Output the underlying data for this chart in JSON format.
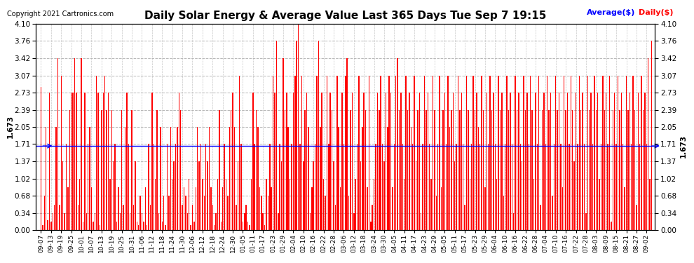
{
  "title": "Daily Solar Energy & Average Value Last 365 Days Tue Sep 7 19:15",
  "copyright": "Copyright 2021 Cartronics.com",
  "average_label": "Average($)",
  "daily_label": "Daily($)",
  "average_value": 1.673,
  "ylim": [
    0.0,
    4.1
  ],
  "yticks": [
    0.0,
    0.34,
    0.68,
    1.02,
    1.37,
    1.71,
    2.05,
    2.39,
    2.73,
    3.07,
    3.42,
    3.76,
    4.1
  ],
  "bar_color": "#ff0000",
  "average_line_color": "#0000ff",
  "background_color": "#ffffff",
  "grid_color": "#b0b0b0",
  "title_color": "#000000",
  "copyright_color": "#000000",
  "x_labels": [
    "09-07",
    "09-13",
    "09-19",
    "09-25",
    "10-01",
    "10-07",
    "10-13",
    "10-19",
    "10-25",
    "10-31",
    "11-06",
    "11-12",
    "11-18",
    "11-24",
    "11-30",
    "12-06",
    "12-12",
    "12-18",
    "12-24",
    "12-30",
    "01-05",
    "01-11",
    "01-17",
    "01-23",
    "01-29",
    "02-04",
    "02-10",
    "02-16",
    "02-22",
    "02-28",
    "03-06",
    "03-12",
    "03-18",
    "03-24",
    "03-30",
    "04-05",
    "04-11",
    "04-17",
    "04-23",
    "04-29",
    "05-05",
    "05-11",
    "05-17",
    "05-23",
    "05-29",
    "06-04",
    "06-10",
    "06-16",
    "06-22",
    "06-28",
    "07-04",
    "07-10",
    "07-16",
    "07-22",
    "07-28",
    "08-03",
    "08-09",
    "08-15",
    "08-21",
    "08-27",
    "09-02"
  ],
  "daily_values": [
    2.85,
    0.1,
    0.68,
    2.05,
    0.2,
    2.73,
    0.17,
    0.34,
    0.51,
    2.05,
    3.42,
    0.51,
    3.07,
    1.37,
    0.34,
    1.71,
    0.85,
    2.39,
    2.73,
    2.73,
    3.42,
    2.73,
    0.51,
    1.02,
    3.42,
    0.17,
    2.73,
    0.34,
    1.71,
    2.05,
    0.85,
    0.17,
    0.34,
    3.07,
    2.73,
    0.1,
    2.39,
    2.73,
    3.07,
    2.39,
    2.73,
    1.02,
    2.39,
    1.37,
    1.71,
    0.17,
    0.85,
    0.34,
    2.39,
    0.51,
    2.05,
    2.73,
    1.71,
    0.34,
    2.39,
    0.51,
    1.37,
    0.17,
    0.1,
    0.68,
    0.34,
    0.17,
    0.85,
    0.1,
    1.71,
    0.51,
    2.73,
    1.71,
    1.02,
    2.39,
    0.34,
    2.05,
    0.17,
    0.68,
    0.1,
    1.71,
    0.68,
    2.05,
    1.02,
    1.37,
    1.71,
    2.05,
    2.73,
    2.39,
    0.51,
    0.85,
    0.68,
    0.34,
    1.02,
    0.1,
    0.51,
    0.17,
    0.85,
    2.05,
    1.37,
    1.71,
    1.02,
    0.68,
    1.71,
    1.37,
    2.05,
    0.85,
    0.51,
    0.1,
    0.34,
    1.02,
    2.39,
    0.17,
    0.85,
    1.71,
    1.02,
    0.68,
    2.05,
    2.39,
    2.73,
    2.05,
    0.51,
    1.37,
    3.07,
    1.71,
    0.17,
    0.34,
    0.51,
    0.17,
    0.1,
    1.02,
    2.73,
    1.71,
    2.39,
    2.05,
    0.85,
    0.68,
    0.34,
    0.1,
    1.02,
    0.68,
    1.71,
    0.85,
    3.07,
    2.73,
    3.76,
    0.34,
    1.71,
    1.37,
    3.42,
    2.39,
    2.73,
    2.05,
    1.02,
    1.71,
    2.73,
    3.07,
    3.76,
    4.1,
    1.71,
    3.07,
    1.37,
    2.39,
    2.73,
    2.05,
    0.34,
    0.85,
    1.37,
    1.71,
    3.07,
    3.76,
    2.05,
    2.73,
    1.02,
    0.68,
    3.07,
    1.71,
    2.73,
    2.39,
    1.37,
    0.51,
    3.07,
    2.05,
    0.85,
    2.73,
    1.71,
    3.07,
    3.42,
    0.68,
    2.39,
    2.73,
    0.34,
    1.02,
    1.71,
    3.07,
    1.37,
    2.05,
    2.73,
    2.39,
    0.85,
    3.07,
    0.17,
    0.51,
    1.02,
    1.71,
    2.73,
    2.39,
    3.07,
    1.71,
    1.37,
    2.73,
    2.05,
    3.07,
    2.73,
    0.85,
    1.71,
    3.07,
    3.42,
    2.39,
    2.73,
    1.71,
    1.02,
    3.07,
    2.39,
    2.73,
    2.05,
    1.71,
    3.07,
    1.37,
    2.39,
    2.73,
    0.34,
    1.71,
    3.07,
    2.39,
    2.73,
    1.71,
    1.02,
    3.07,
    2.39,
    0.68,
    1.71,
    3.07,
    0.85,
    2.39,
    2.73,
    1.71,
    3.07,
    2.05,
    2.39,
    2.73,
    1.37,
    1.71,
    3.07,
    2.39,
    2.73,
    1.71,
    0.51,
    3.07,
    2.39,
    1.02,
    1.71,
    3.07,
    2.39,
    2.73,
    2.05,
    1.71,
    3.07,
    2.39,
    0.85,
    2.73,
    1.71,
    3.07,
    2.39,
    2.73,
    1.71,
    1.02,
    3.07,
    2.39,
    2.73,
    0.68,
    1.71,
    3.07,
    2.39,
    2.73,
    1.71,
    0.34,
    3.07,
    2.39,
    2.73,
    1.71,
    1.37,
    3.07,
    2.39,
    2.73,
    1.71,
    3.07,
    2.39,
    1.02,
    2.73,
    1.71,
    3.07,
    0.51,
    2.39,
    2.73,
    1.71,
    3.07,
    2.39,
    2.73,
    0.68,
    1.71,
    3.07,
    2.39,
    2.73,
    1.71,
    0.85,
    3.07,
    2.39,
    2.73,
    1.71,
    3.07,
    2.39,
    1.37,
    2.73,
    1.71,
    3.07,
    2.39,
    2.73,
    1.71,
    0.34,
    3.07,
    2.39,
    2.73,
    1.71,
    3.07,
    2.39,
    2.73,
    1.02,
    1.71,
    3.07,
    2.39,
    2.73,
    1.71,
    3.07,
    0.17,
    2.39,
    2.73,
    1.71,
    3.07,
    2.39,
    2.73,
    1.71,
    0.85,
    3.07,
    2.39,
    2.73,
    1.71,
    3.07,
    2.39,
    0.51,
    2.73,
    1.71,
    3.07,
    2.39,
    2.73,
    1.71,
    3.42,
    1.02,
    3.76
  ]
}
